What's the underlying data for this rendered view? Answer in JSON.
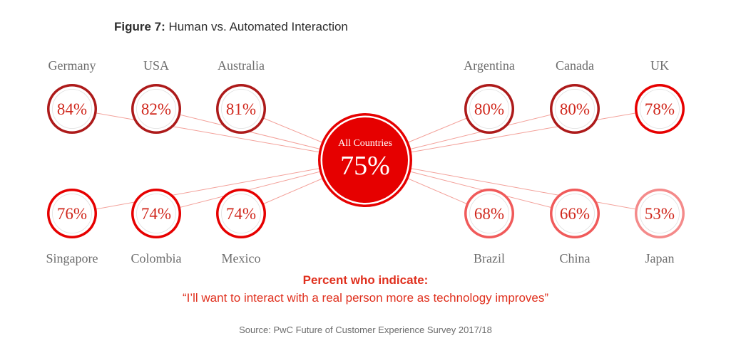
{
  "figure": {
    "label": "Figure 7:",
    "title": "Human vs. Automated Interaction"
  },
  "footer": {
    "subtitle_bold": "Percent who indicate:",
    "subtitle_quote": "“I’ll want to interact with a real person more as technology improves”",
    "source": "Source: PwC Future of Customer Experience Survey 2017/18"
  },
  "chart_data": {
    "type": "bubble-network",
    "unit": "%",
    "center": {
      "label": "All Countries",
      "value": 75
    },
    "points": [
      {
        "country": "Germany",
        "value": 84,
        "color": "#ad1a1a"
      },
      {
        "country": "USA",
        "value": 82,
        "color": "#ad1a1a"
      },
      {
        "country": "Australia",
        "value": 81,
        "color": "#ad1a1a"
      },
      {
        "country": "Argentina",
        "value": 80,
        "color": "#ad1a1a"
      },
      {
        "country": "Canada",
        "value": 80,
        "color": "#ad1a1a"
      },
      {
        "country": "UK",
        "value": 78,
        "color": "#e60000"
      },
      {
        "country": "Singapore",
        "value": 76,
        "color": "#e60000"
      },
      {
        "country": "Colombia",
        "value": 74,
        "color": "#e60000"
      },
      {
        "country": "Mexico",
        "value": 74,
        "color": "#e60000"
      },
      {
        "country": "Brazil",
        "value": 68,
        "color": "#f05a5a"
      },
      {
        "country": "China",
        "value": 66,
        "color": "#f05a5a"
      },
      {
        "country": "Japan",
        "value": 53,
        "color": "#f48a8a"
      }
    ]
  },
  "colors": {
    "center_fill": "#e60000",
    "connector": "#f3a19a",
    "label_gray": "#6d6d6d",
    "value_text": "#d0271c",
    "accent": "#e0301e"
  }
}
